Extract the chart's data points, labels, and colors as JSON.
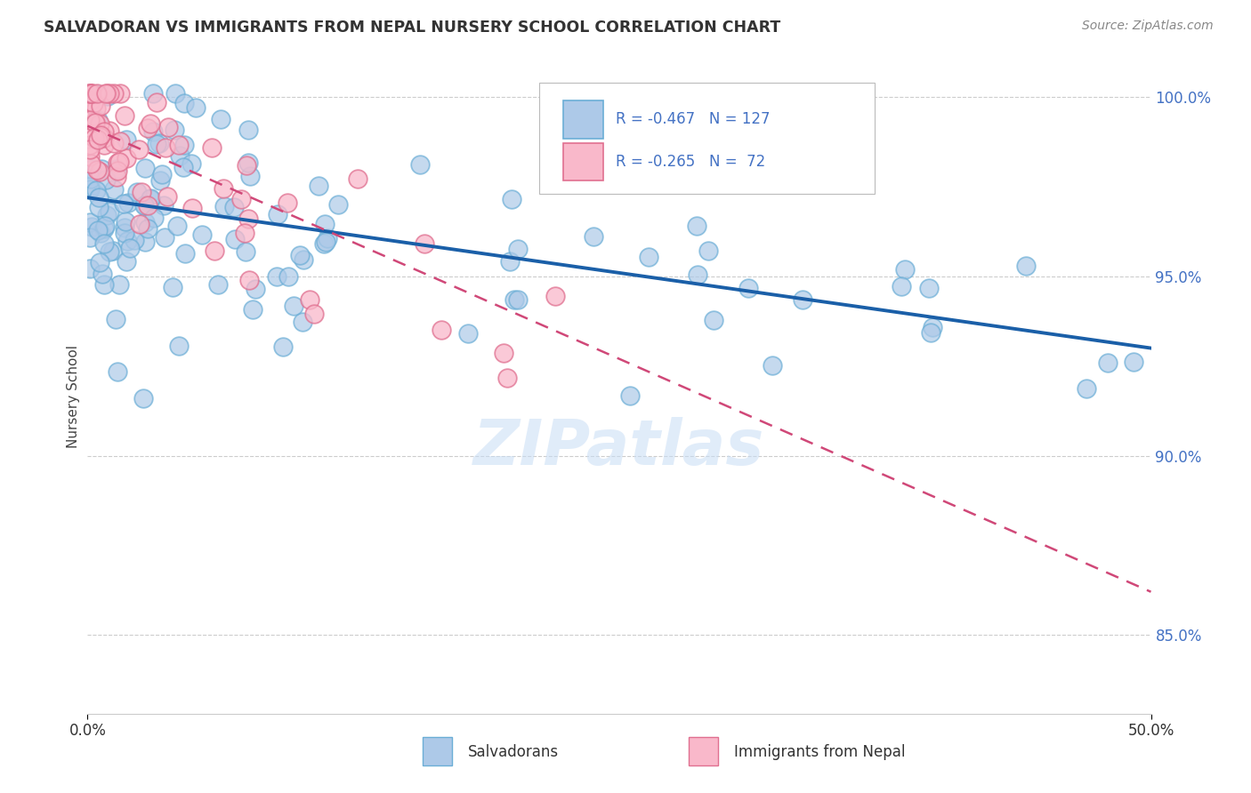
{
  "title": "SALVADORAN VS IMMIGRANTS FROM NEPAL NURSERY SCHOOL CORRELATION CHART",
  "source": "Source: ZipAtlas.com",
  "ylabel": "Nursery School",
  "xmin": 0.0,
  "xmax": 0.5,
  "ymin": 0.828,
  "ymax": 1.005,
  "yticks": [
    0.85,
    0.9,
    0.95,
    1.0
  ],
  "ytick_labels": [
    "85.0%",
    "90.0%",
    "95.0%",
    "100.0%"
  ],
  "blue_r": "-0.467",
  "blue_n": "127",
  "pink_r": "-0.265",
  "pink_n": "72",
  "blue_face": "#adc9e8",
  "blue_edge": "#6baed6",
  "blue_line_color": "#1a5fa8",
  "pink_face": "#f9b8ca",
  "pink_edge": "#e07090",
  "pink_line_color": "#d04878",
  "grid_color": "#cccccc",
  "axis_color": "#4472c4",
  "title_color": "#333333",
  "watermark_color": "#c8ddf5",
  "legend_text_color": "#4472c4",
  "blue_line_x0": 0.0,
  "blue_line_x1": 0.5,
  "blue_line_y0": 0.972,
  "blue_line_y1": 0.93,
  "pink_line_x0": 0.0,
  "pink_line_x1": 0.5,
  "pink_line_y0": 0.992,
  "pink_line_y1": 0.862
}
